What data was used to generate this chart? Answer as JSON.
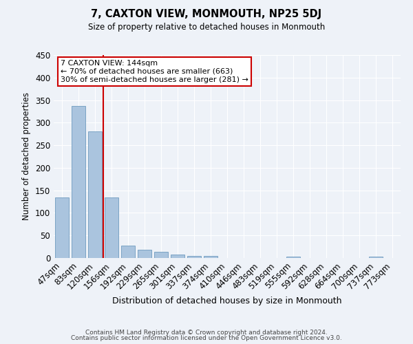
{
  "title": "7, CAXTON VIEW, MONMOUTH, NP25 5DJ",
  "subtitle": "Size of property relative to detached houses in Monmouth",
  "xlabel": "Distribution of detached houses by size in Monmouth",
  "ylabel": "Number of detached properties",
  "bar_labels": [
    "47sqm",
    "83sqm",
    "120sqm",
    "156sqm",
    "192sqm",
    "229sqm",
    "265sqm",
    "301sqm",
    "337sqm",
    "374sqm",
    "410sqm",
    "446sqm",
    "483sqm",
    "519sqm",
    "555sqm",
    "592sqm",
    "628sqm",
    "664sqm",
    "700sqm",
    "737sqm",
    "773sqm"
  ],
  "bar_values": [
    135,
    337,
    281,
    134,
    27,
    18,
    13,
    7,
    5,
    5,
    0,
    0,
    0,
    0,
    3,
    0,
    0,
    0,
    0,
    3,
    0
  ],
  "bar_color": "#aac4de",
  "bar_edge_color": "#5a8db5",
  "background_color": "#eef2f8",
  "grid_color": "#ffffff",
  "vline_color": "#cc0000",
  "annotation_title": "7 CAXTON VIEW: 144sqm",
  "annotation_line1": "← 70% of detached houses are smaller (663)",
  "annotation_line2": "30% of semi-detached houses are larger (281) →",
  "annotation_box_color": "#cc0000",
  "ylim": [
    0,
    450
  ],
  "yticks": [
    0,
    50,
    100,
    150,
    200,
    250,
    300,
    350,
    400,
    450
  ],
  "footer1": "Contains HM Land Registry data © Crown copyright and database right 2024.",
  "footer2": "Contains public sector information licensed under the Open Government Licence v3.0."
}
